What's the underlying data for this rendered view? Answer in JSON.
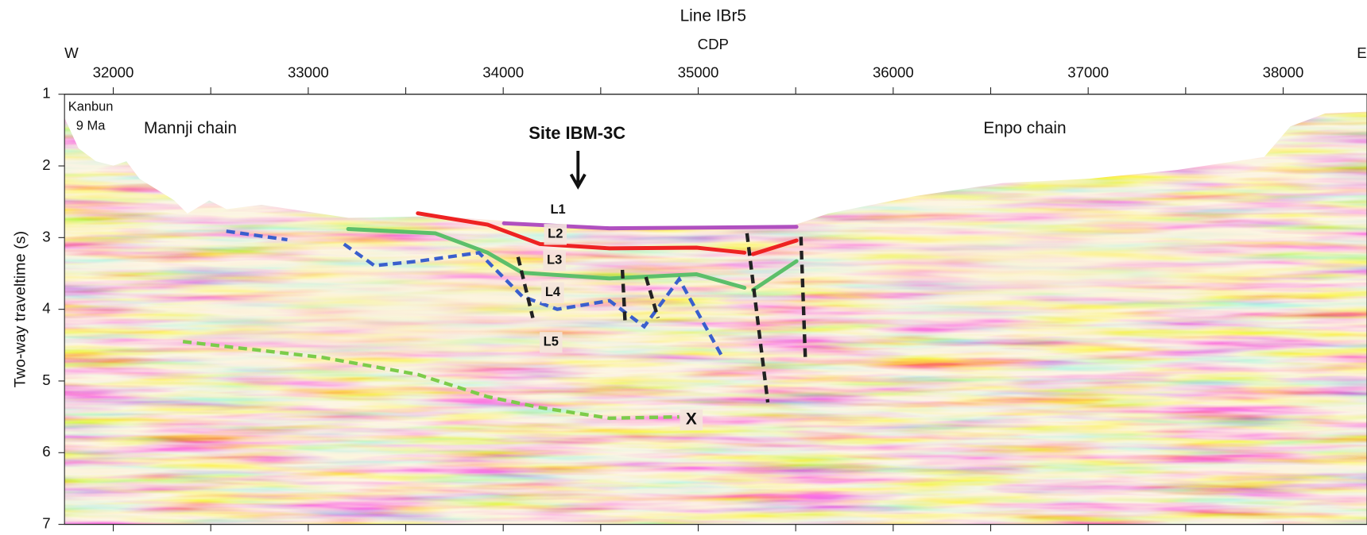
{
  "chart_data": {
    "type": "seismic-section",
    "title": "Line IBr5",
    "xlabel": "CDP",
    "ylabel": "Two-way traveltime (s)",
    "left_label": "W",
    "right_label": "E",
    "xlim": [
      31750,
      38430
    ],
    "ylim": [
      7,
      1
    ],
    "xticks": [
      32000,
      33000,
      34000,
      35000,
      36000,
      37000,
      38000
    ],
    "xminor_ticks": [
      32500,
      33500,
      34500,
      35500,
      36500,
      37500
    ],
    "yticks": [
      1,
      2,
      3,
      4,
      5,
      6,
      7
    ],
    "annotations": [
      "Kanbun",
      "9 Ma",
      "Mannji chain",
      "Enpo chain",
      "Site IBM-3C",
      "L1",
      "L2",
      "L3",
      "L4",
      "L5",
      "X"
    ],
    "series": [
      {
        "color": "#ee2222",
        "dash": false,
        "x": [
          33562,
          33920,
          34188,
          34545,
          34991,
          35237
        ],
        "values": [
          2.66,
          2.82,
          3.09,
          3.15,
          3.14,
          3.21
        ]
      },
      {
        "color": "#ee2222",
        "dash": false,
        "x": [
          35281,
          35504
        ],
        "values": [
          3.23,
          3.04
        ]
      },
      {
        "color": "#b050c0",
        "dash": false,
        "x": [
          34004,
          34545,
          35504
        ],
        "values": [
          2.8,
          2.87,
          2.85
        ]
      },
      {
        "color": "#5cbf6a",
        "dash": false,
        "x": [
          33205,
          33652,
          33920,
          34098,
          34545,
          34991,
          35237
        ],
        "values": [
          2.88,
          2.94,
          3.21,
          3.49,
          3.57,
          3.51,
          3.7
        ]
      },
      {
        "color": "#5cbf6a",
        "dash": false,
        "x": [
          35281,
          35504
        ],
        "values": [
          3.73,
          3.33
        ]
      },
      {
        "color": "#3a5fcd",
        "dash": true,
        "x": [
          32580,
          32893
        ],
        "values": [
          2.91,
          3.03
        ]
      },
      {
        "color": "#3a5fcd",
        "dash": true,
        "x": [
          33183,
          33339,
          33562,
          33875,
          34098,
          34277,
          34545,
          34723,
          34902,
          35125
        ],
        "values": [
          3.09,
          3.39,
          3.33,
          3.21,
          3.82,
          4.0,
          3.88,
          4.24,
          3.58,
          4.67
        ]
      },
      {
        "color": "#7ccc4a",
        "dash": true,
        "x": [
          32357,
          33071,
          33562,
          33920,
          34188,
          34545,
          34902
        ],
        "values": [
          4.45,
          4.67,
          4.91,
          5.22,
          5.37,
          5.52,
          5.5
        ]
      },
      {
        "color": "#222222",
        "dash": true,
        "x": [
          34076,
          34152
        ],
        "values": [
          3.27,
          4.12
        ]
      },
      {
        "color": "#222222",
        "dash": true,
        "x": [
          34611,
          34625
        ],
        "values": [
          3.45,
          4.18
        ]
      },
      {
        "color": "#222222",
        "dash": true,
        "x": [
          34732,
          34794
        ],
        "values": [
          3.55,
          4.12
        ]
      },
      {
        "color": "#222222",
        "dash": true,
        "x": [
          35250,
          35357
        ],
        "values": [
          2.94,
          5.3
        ]
      },
      {
        "color": "#222222",
        "dash": true,
        "x": [
          35527,
          35549
        ],
        "values": [
          2.99,
          4.67
        ]
      }
    ]
  }
}
